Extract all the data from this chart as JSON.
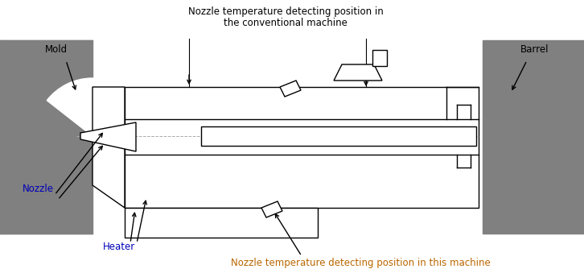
{
  "bg_color": "#ffffff",
  "gray_color": "#808080",
  "line_color": "#000000",
  "text_color_black": "#000000",
  "text_color_blue": "#0000bb",
  "text_color_orange": "#bb6600",
  "title_line1": "Nozzle temperature detecting position in",
  "title_line2": "the conventional machine",
  "label_mold": "Mold",
  "label_barrel": "Barrel",
  "label_nozzle": "Nozzle",
  "label_heater": "Heater",
  "label_bottom": "Nozzle temperature detecting position in this machine",
  "figsize": [
    7.26,
    3.34
  ],
  "dpi": 100
}
